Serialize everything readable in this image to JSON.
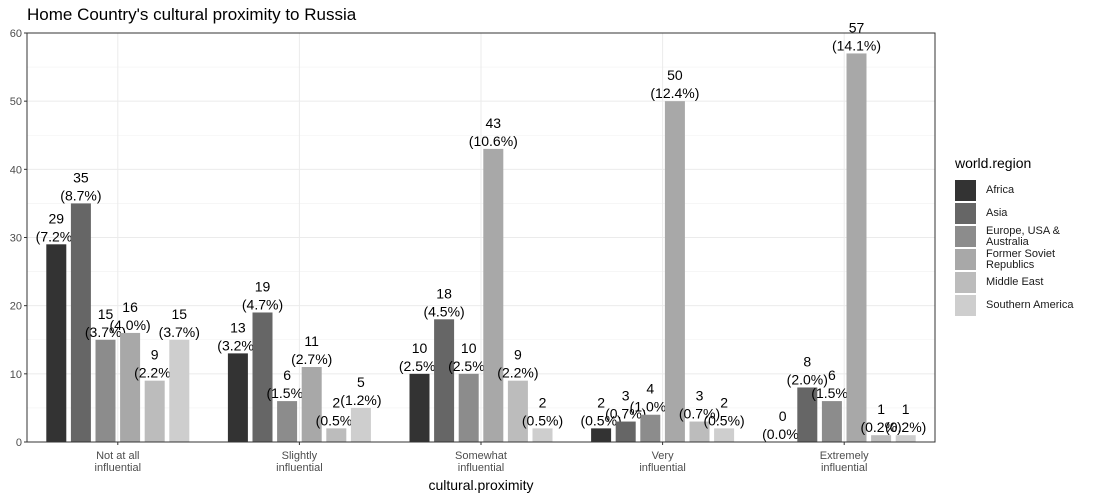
{
  "chart_data": {
    "type": "bar",
    "title": "Home Country's cultural proximity to Russia",
    "xlabel": "cultural.proximity",
    "ylabel": "",
    "ylim": [
      0,
      60
    ],
    "yticks": [
      "0",
      "10",
      "20",
      "30",
      "40",
      "50",
      "60"
    ],
    "grid": true,
    "legend_title": "world.region",
    "legend_position": "right",
    "categories": [
      "Not at all\ninfluential",
      "Slightly\ninfluential",
      "Somewhat\ninfluential",
      "Very\ninfluential",
      "Extremely\ninfluential"
    ],
    "series": [
      {
        "name": "Africa",
        "color": "#333333",
        "values": [
          29,
          13,
          10,
          2,
          0
        ],
        "labels": [
          "(7.2%)",
          "(3.2%)",
          "(2.5%)",
          "(0.5%)",
          "(0.0%)"
        ]
      },
      {
        "name": "Asia",
        "color": "#666666",
        "values": [
          35,
          19,
          18,
          3,
          8
        ],
        "labels": [
          "(8.7%)",
          "(4.7%)",
          "(4.5%)",
          "(0.7%)",
          "(2.0%)"
        ]
      },
      {
        "name": "Europe, USA &\nAustralia",
        "color": "#8c8c8c",
        "values": [
          15,
          6,
          10,
          4,
          6
        ],
        "labels": [
          "(3.7%)",
          "(1.5%)",
          "(2.5%)",
          "(1.0%)",
          "(1.5%)"
        ]
      },
      {
        "name": "Former Soviet\nRepublics",
        "color": "#a8a8a8",
        "values": [
          16,
          11,
          43,
          50,
          57
        ],
        "labels": [
          "(4.0%)",
          "(2.7%)",
          "(10.6%)",
          "(12.4%)",
          "(14.1%)"
        ]
      },
      {
        "name": "Middle East",
        "color": "#bcbcbc",
        "values": [
          9,
          2,
          9,
          3,
          1
        ],
        "labels": [
          "(2.2%)",
          "(0.5%)",
          "(2.2%)",
          "(0.7%)",
          "(0.2%)"
        ]
      },
      {
        "name": "Southern America",
        "color": "#cecece",
        "values": [
          15,
          5,
          2,
          2,
          1
        ],
        "labels": [
          "(3.7%)",
          "(1.2%)",
          "(0.5%)",
          "(0.5%)",
          "(0.2%)"
        ]
      }
    ]
  }
}
